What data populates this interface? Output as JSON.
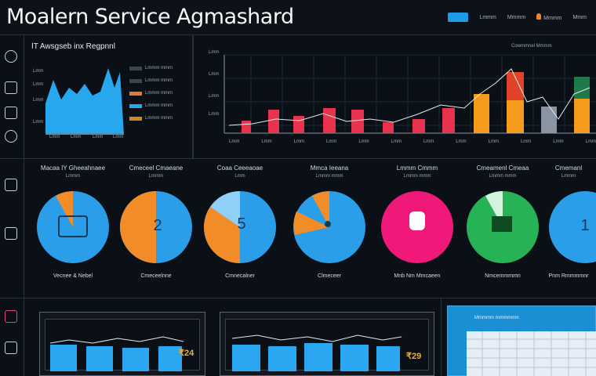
{
  "header": {
    "title": "Moalern Service Agmashard",
    "right_items": [
      "Lmmm",
      "Mmmm",
      "Mmmm",
      "Mmm"
    ]
  },
  "left_panel": {
    "title": "IT Awsgseb inx Regpnnl",
    "ylabels": [
      "Lmm",
      "Lmm",
      "Lmm",
      "Lmm"
    ],
    "xlabels": [
      "Lmm",
      "Lmm",
      "Lmm",
      "Lmm"
    ],
    "rows": [
      "Lmmm mmm",
      "Lmmm mmm",
      "Lmmm mmm",
      "Lmmm mmm",
      "Lmmm mmm"
    ]
  },
  "main_chart": {
    "legend": "Cowmmnel Mmmm",
    "ylabels": [
      "Lmm",
      "Lmm",
      "Lmm",
      "Lmm"
    ],
    "xlabels": [
      "Lmm",
      "Lmm",
      "Lmm",
      "Lmm",
      "Lmm",
      "Lmm",
      "Lmm",
      "Lmm",
      "Lmm",
      "Lmm",
      "Lmm",
      "Lmm"
    ]
  },
  "donuts": [
    {
      "top": "Macaa IY Gheeahnaee",
      "sub": "Lmmm",
      "bottom": "Vecnee & Nebel",
      "center": ""
    },
    {
      "top": "Cmeceel Cmaeane",
      "sub": "Lmmm",
      "bottom": "Cmeceelnne",
      "center": "2"
    },
    {
      "top": "Coaa Ceeeaoae",
      "sub": "Lmm",
      "bottom": "Cmnecalner",
      "center": "5"
    },
    {
      "top": "Mmca Ieeana",
      "sub": "Lmmm mmm",
      "bottom": "Clmeceer",
      "center": ""
    },
    {
      "top": "Lmmm Cmmm",
      "sub": "Lmmm mmm",
      "bottom": "Mnb Nm Mmcaeen",
      "center": ""
    },
    {
      "top": "Cmeamenl Cmeaa",
      "sub": "Lmmm mmm",
      "bottom": "Nmcemmmmn",
      "center": ""
    },
    {
      "top": "Cmemanl",
      "sub": "Lmmm",
      "bottom": "Pnm Rmmmmnr",
      "center": "1"
    }
  ],
  "bottom": {
    "tag_1": "₹24",
    "tag_2": "₹29",
    "blue_panel_title": "Mmmmm mmmmmm"
  }
}
